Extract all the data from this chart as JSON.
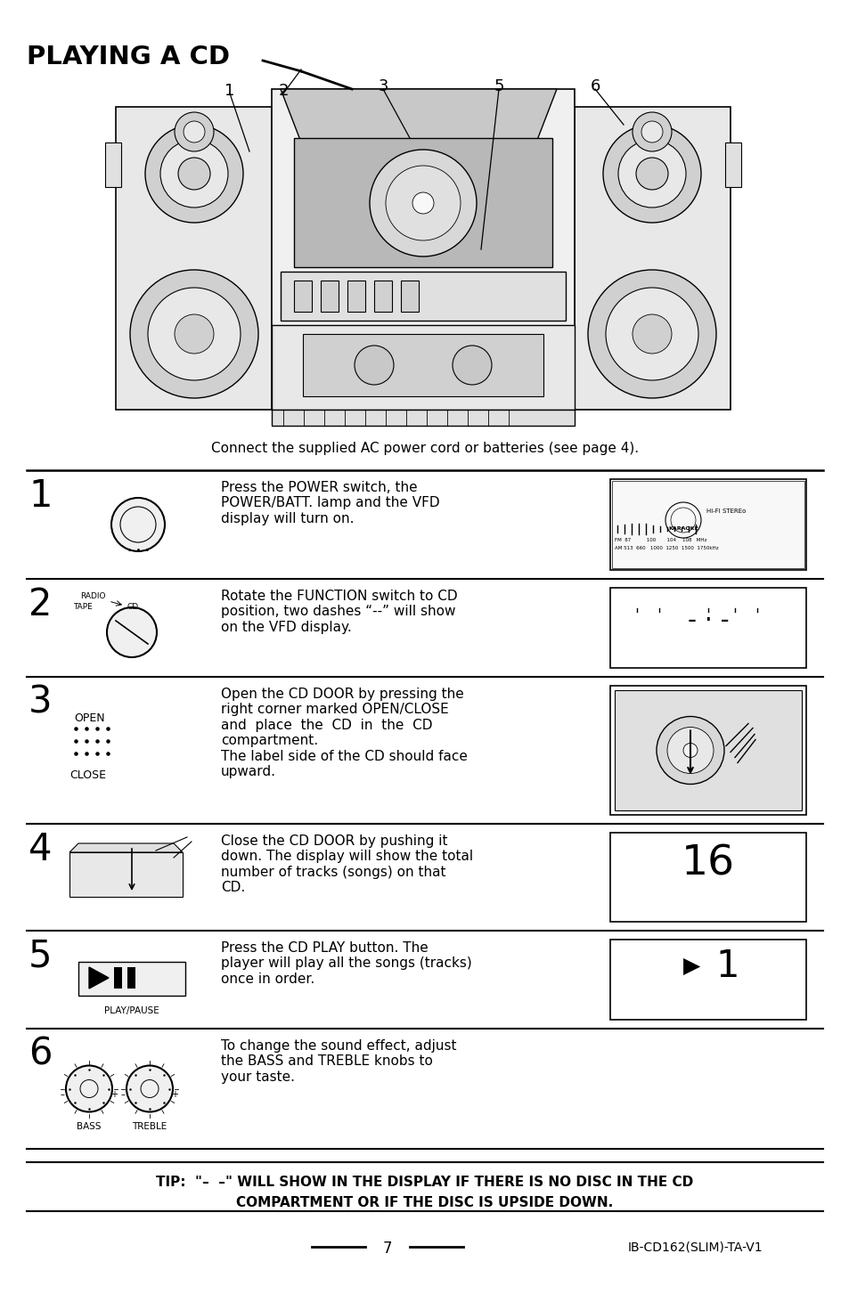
{
  "title": "PLAYING A CD",
  "subtitle": "Connect the supplied AC power cord or batteries (see page 4).",
  "tip_line1": "TIP:  “–  –” WILL SHOW IN THE DISPLAY IF THERE IS NO DISC IN THE CD",
  "tip_line2": "COMPARTMENT OR IF THE DISC IS UPSIDE DOWN.",
  "page_number": "7",
  "model": "IB-CD162(SLIM)-TA-V1",
  "step_texts": [
    "Press the POWER switch, the\nPOWER/BATT. lamp and the VFD\ndisplay will turn on.",
    "Rotate the FUNCTION switch to CD\nposition, two dashes “--” will show\non the VFD display.",
    "Open the CD DOOR by pressing the\nright corner marked OPEN/CLOSE\nand  place  the  CD  in  the  CD\ncompartment.\nThe label side of the CD should face\nupward.",
    "Close the CD DOOR by pushing it\ndown. The display will show the total\nnumber of tracks (songs) on that\nCD.",
    "Press the CD PLAY button. The\nplayer will play all the songs (tracks)\nonce in order.",
    "To change the sound effect, adjust\nthe BASS and TREBLE knobs to\nyour taste."
  ],
  "step_nums": [
    "1",
    "2",
    "3",
    "4",
    "5",
    "6"
  ],
  "bg_color": "#ffffff"
}
